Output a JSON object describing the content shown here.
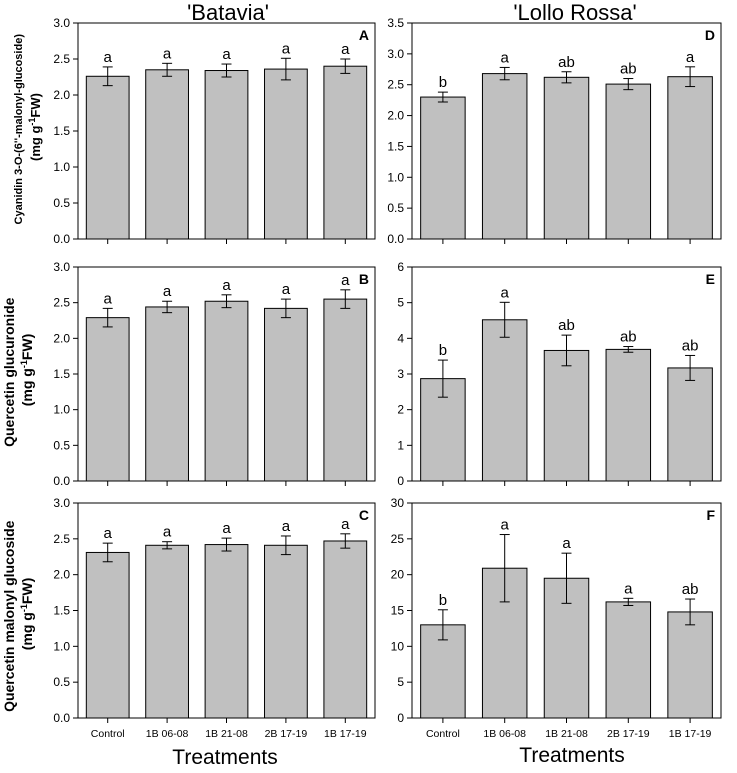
{
  "column_titles": {
    "left": "'Batavia'",
    "right": "'Lollo Rossa'"
  },
  "y_labels": {
    "row1": [
      "Cyanidin 3-O-(6''-malonyl-glucoside)",
      "(mg g-1FW)"
    ],
    "row2": [
      "Quercetin glucuronide",
      "(mg g-1FW)"
    ],
    "row3": [
      "Quercetin malonyl glucoside",
      "(mg g-1FW)"
    ]
  },
  "x_axis_label": "Treatments",
  "chart_data": [
    {
      "id": "A",
      "type": "bar",
      "panel_label": "A",
      "cultivar": "'Batavia'",
      "categories": [
        "Control",
        "1B 06-08",
        "1B 21-08",
        "2B 17-19",
        "1B 17-19"
      ],
      "values": [
        2.26,
        2.35,
        2.34,
        2.36,
        2.4
      ],
      "errors": [
        0.13,
        0.09,
        0.09,
        0.15,
        0.1
      ],
      "letters": [
        "a",
        "a",
        "a",
        "a",
        "a"
      ],
      "ylim": [
        0,
        3.0
      ],
      "yticks": [
        "0.0",
        "0.5",
        "1.0",
        "1.5",
        "2.0",
        "2.5",
        "3.0"
      ]
    },
    {
      "id": "B",
      "type": "bar",
      "panel_label": "B",
      "cultivar": "'Batavia'",
      "categories": [
        "Control",
        "1B 06-08",
        "1B 21-08",
        "2B 17-19",
        "1B 17-19"
      ],
      "values": [
        2.29,
        2.44,
        2.52,
        2.42,
        2.55
      ],
      "errors": [
        0.13,
        0.08,
        0.09,
        0.13,
        0.13
      ],
      "letters": [
        "a",
        "a",
        "a",
        "a",
        "a"
      ],
      "ylim": [
        0,
        3.0
      ],
      "yticks": [
        "0.0",
        "0.5",
        "1.0",
        "1.5",
        "2.0",
        "2.5",
        "3.0"
      ]
    },
    {
      "id": "C",
      "type": "bar",
      "panel_label": "C",
      "cultivar": "'Batavia'",
      "categories": [
        "Control",
        "1B 06-08",
        "1B 21-08",
        "2B 17-19",
        "1B 17-19"
      ],
      "values": [
        2.31,
        2.41,
        2.42,
        2.41,
        2.47
      ],
      "errors": [
        0.13,
        0.05,
        0.09,
        0.13,
        0.1
      ],
      "letters": [
        "a",
        "a",
        "a",
        "a",
        "a"
      ],
      "ylim": [
        0,
        3.0
      ],
      "yticks": [
        "0.0",
        "0.5",
        "1.0",
        "1.5",
        "2.0",
        "2.5",
        "3.0"
      ]
    },
    {
      "id": "D",
      "type": "bar",
      "panel_label": "D",
      "cultivar": "'Lollo Rossa'",
      "categories": [
        "Control",
        "1B 06-08",
        "1B 21-08",
        "2B 17-19",
        "1B 17-19"
      ],
      "values": [
        2.3,
        2.68,
        2.62,
        2.51,
        2.63
      ],
      "errors": [
        0.08,
        0.1,
        0.09,
        0.09,
        0.16
      ],
      "letters": [
        "b",
        "a",
        "ab",
        "ab",
        "a"
      ],
      "ylim": [
        0,
        3.5
      ],
      "yticks": [
        "0.0",
        "0.5",
        "1.0",
        "1.5",
        "2.0",
        "2.5",
        "3.0",
        "3.5"
      ]
    },
    {
      "id": "E",
      "type": "bar",
      "panel_label": "E",
      "cultivar": "'Lollo Rossa'",
      "categories": [
        "Control",
        "1B 06-08",
        "1B 21-08",
        "2B 17-19",
        "1B 17-19"
      ],
      "values": [
        2.87,
        4.52,
        3.66,
        3.69,
        3.17
      ],
      "errors": [
        0.52,
        0.49,
        0.43,
        0.08,
        0.35
      ],
      "letters": [
        "b",
        "a",
        "ab",
        "ab",
        "ab"
      ],
      "ylim": [
        0,
        6
      ],
      "yticks": [
        "0",
        "1",
        "2",
        "3",
        "4",
        "5",
        "6"
      ]
    },
    {
      "id": "F",
      "type": "bar",
      "panel_label": "F",
      "cultivar": "'Lollo Rossa'",
      "categories": [
        "Control",
        "1B 06-08",
        "1B 21-08",
        "2B 17-19",
        "1B 17-19"
      ],
      "values": [
        13.0,
        20.9,
        19.5,
        16.2,
        14.8
      ],
      "errors": [
        2.1,
        4.7,
        3.5,
        0.5,
        1.8
      ],
      "letters": [
        "b",
        "a",
        "a",
        "a",
        "ab"
      ],
      "ylim": [
        0,
        30
      ],
      "yticks": [
        "0",
        "5",
        "10",
        "15",
        "20",
        "25",
        "30"
      ]
    }
  ]
}
